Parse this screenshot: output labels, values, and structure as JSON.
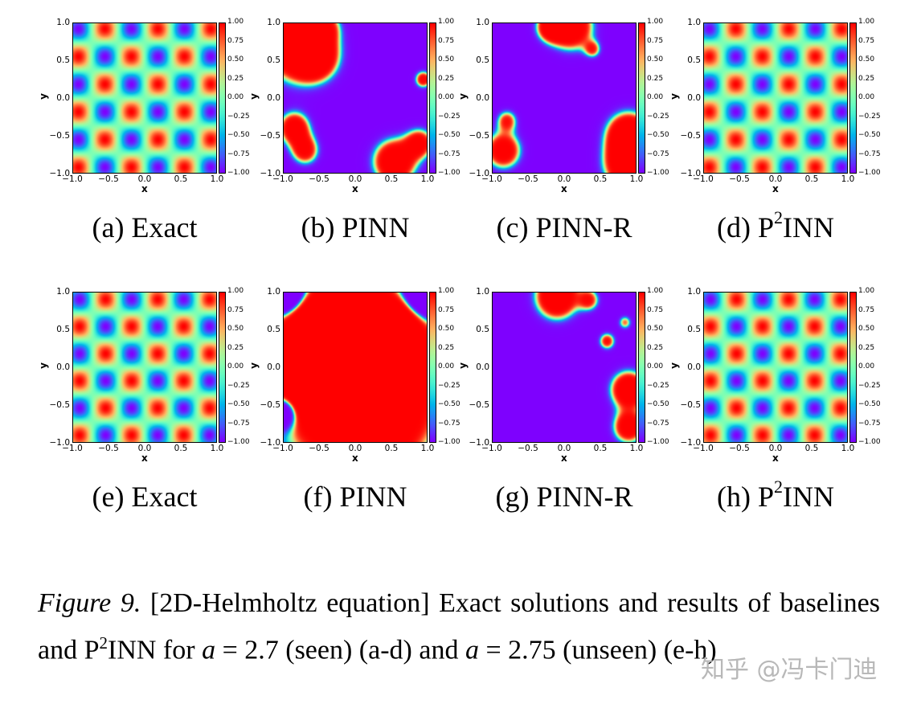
{
  "chart_data": [
    {
      "type": "heatmap",
      "panel": "a",
      "caption": {
        "label": "(a)",
        "name": "Exact"
      },
      "a": 2.7,
      "field": "exact"
    },
    {
      "type": "heatmap",
      "panel": "b",
      "caption": {
        "label": "(b)",
        "name": "PINN"
      },
      "a": 2.7,
      "field": "pinn"
    },
    {
      "type": "heatmap",
      "panel": "c",
      "caption": {
        "label": "(c)",
        "name": "PINN-R"
      },
      "a": 2.7,
      "field": "pinn-r"
    },
    {
      "type": "heatmap",
      "panel": "d",
      "caption": {
        "label": "(d)",
        "name": "P",
        "sup": "2",
        "rest": "INN"
      },
      "a": 2.7,
      "field": "p2inn"
    },
    {
      "type": "heatmap",
      "panel": "e",
      "caption": {
        "label": "(e)",
        "name": "Exact"
      },
      "a": 2.75,
      "field": "exact"
    },
    {
      "type": "heatmap",
      "panel": "f",
      "caption": {
        "label": "(f)",
        "name": "PINN"
      },
      "a": 2.75,
      "field": "pinn"
    },
    {
      "type": "heatmap",
      "panel": "g",
      "caption": {
        "label": "(g)",
        "name": "PINN-R"
      },
      "a": 2.75,
      "field": "pinn-r"
    },
    {
      "type": "heatmap",
      "panel": "h",
      "caption": {
        "label": "(h)",
        "name": "P",
        "sup": "2",
        "rest": "INN"
      },
      "a": 2.75,
      "field": "p2inn"
    }
  ],
  "axes": {
    "xlabel": "x",
    "ylabel": "y",
    "xlim": [
      -1,
      1
    ],
    "ylim": [
      -1,
      1
    ],
    "xticks": [
      "−1.0",
      "−0.5",
      "0.0",
      "0.5",
      "1.0"
    ],
    "yticks": [
      "−1.0",
      "−0.5",
      "0.0",
      "0.5",
      "1.0"
    ],
    "colorbar_ticks": [
      "−1.00",
      "−0.75",
      "−0.50",
      "−0.25",
      "0.00",
      "0.25",
      "0.50",
      "0.75",
      "1.00"
    ],
    "colorbar_range": [
      -1,
      1
    ],
    "colormap": "rainbow"
  },
  "caption": {
    "figure_label": "Figure 9.",
    "text_1": " [2D-Helmholtz equation] Exact solutions and results of baselines and P",
    "sup": "2",
    "text_2": "INN for ",
    "var1": "a",
    "text_3": " = 2.7 (seen) (a-d) and ",
    "var2": "a",
    "text_4": " = 2.75 (unseen) (e-h)"
  },
  "watermark": "知乎 @冯卡门迪"
}
